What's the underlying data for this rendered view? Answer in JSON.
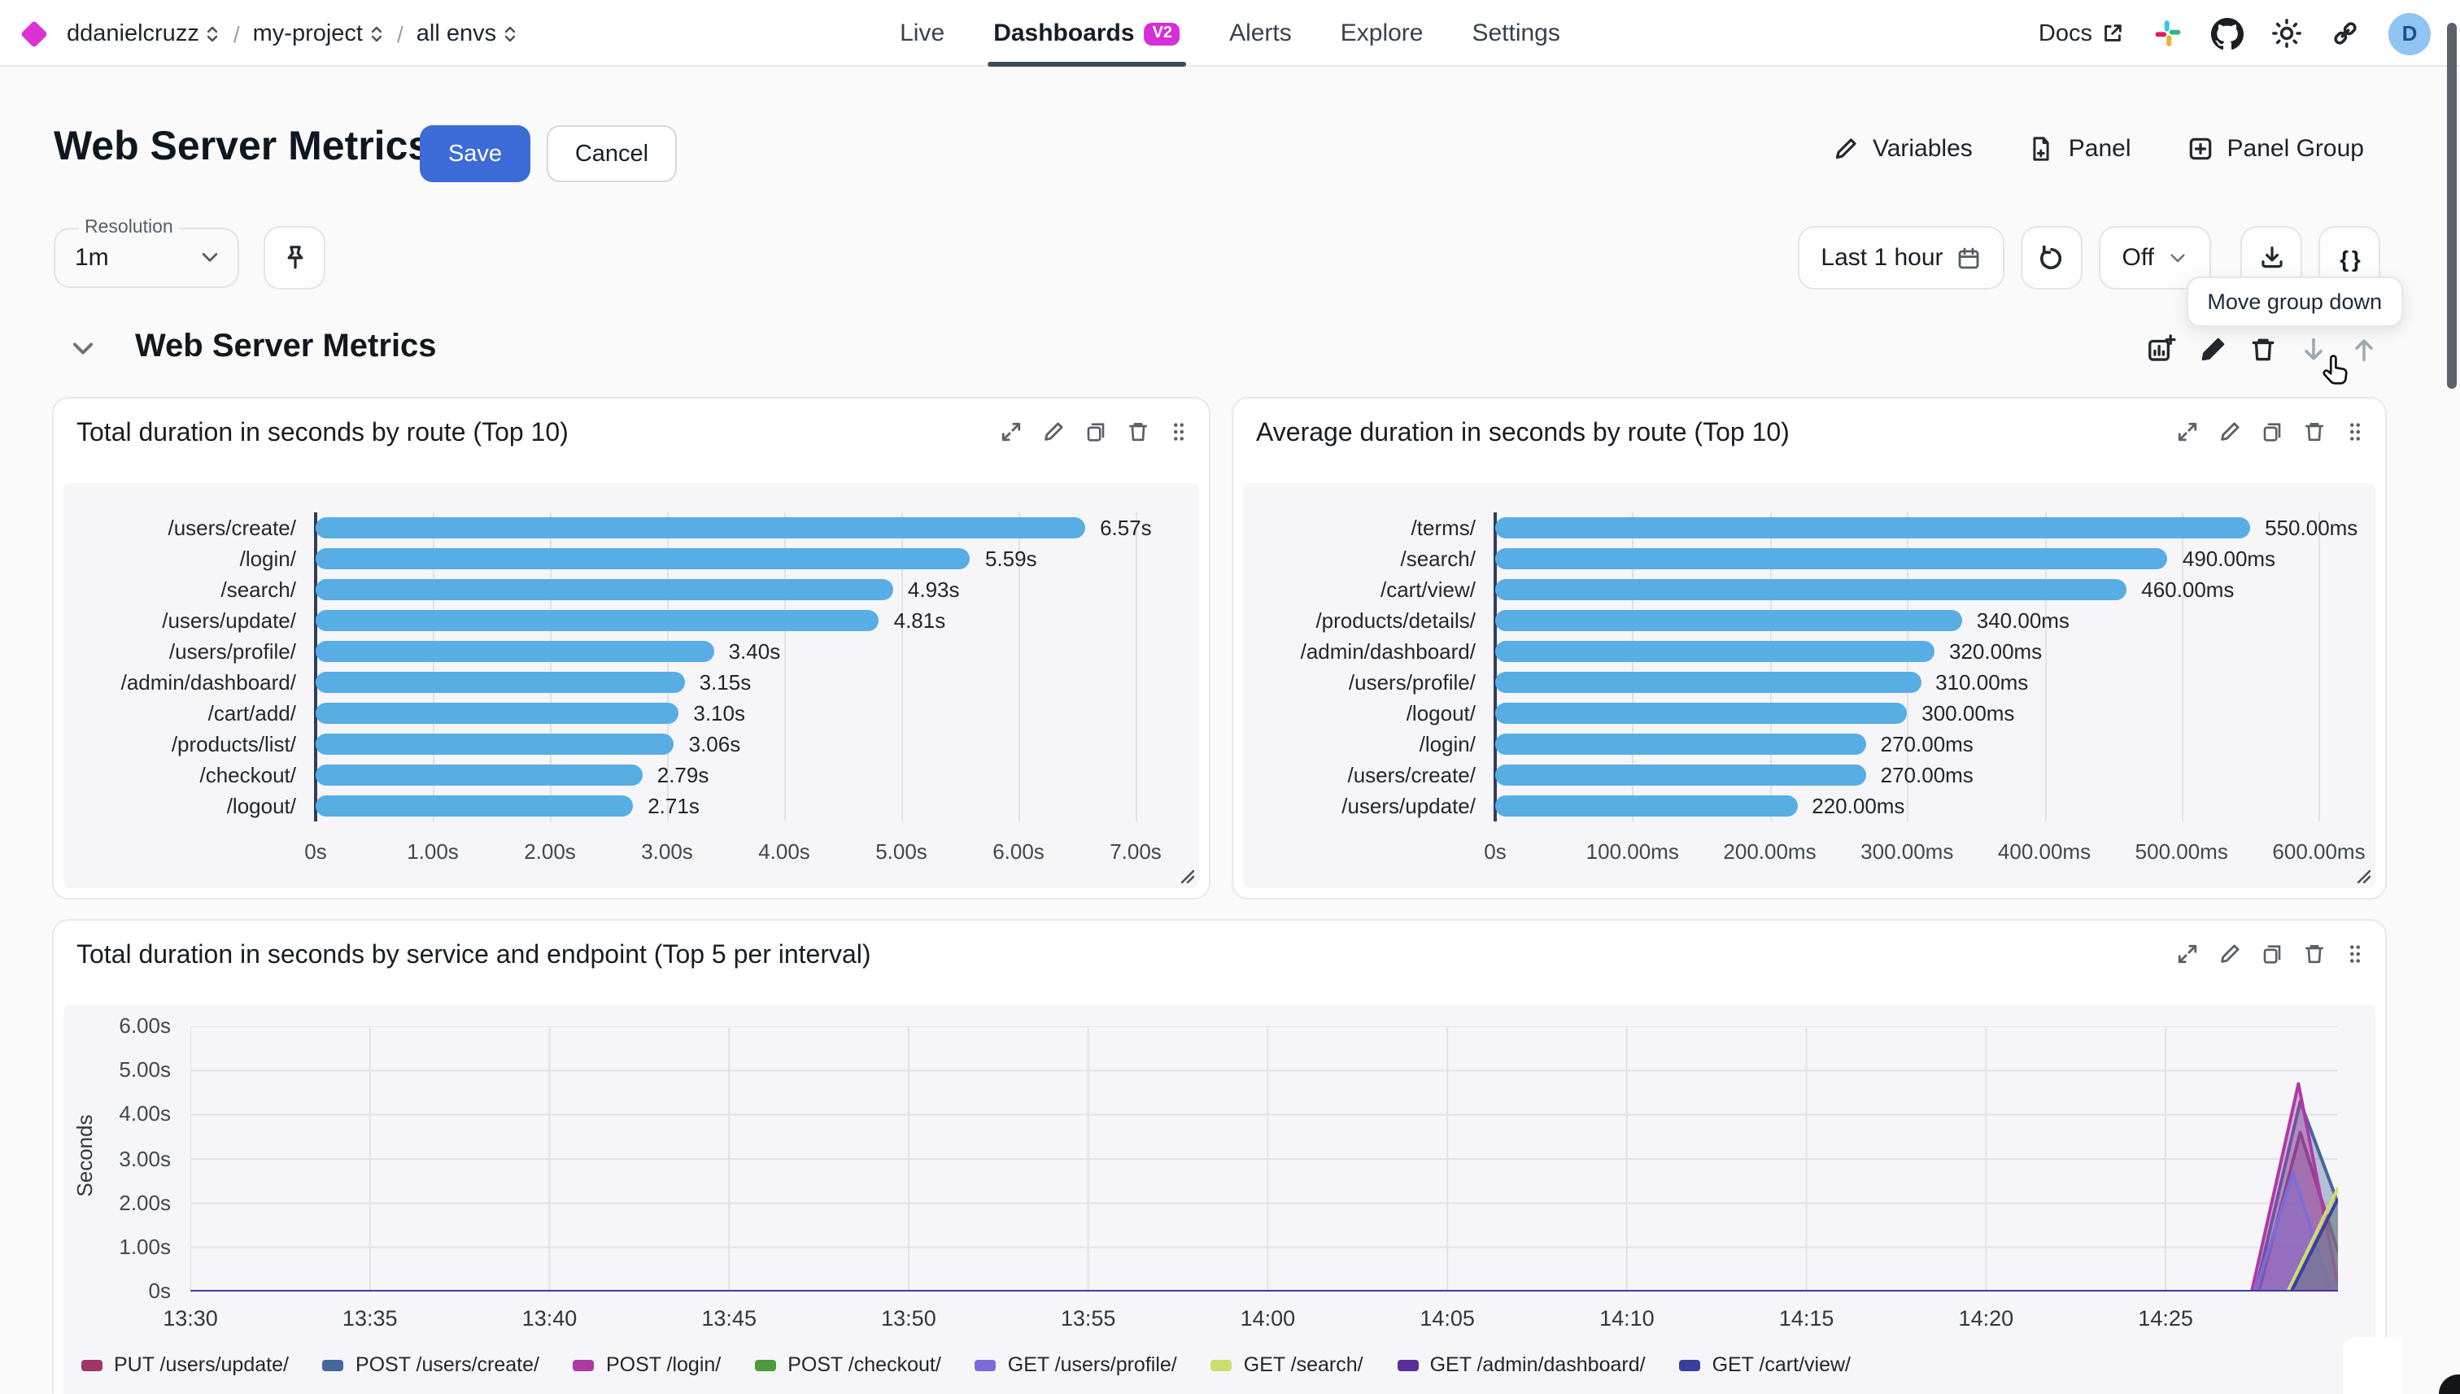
{
  "colors": {
    "accent_blue": "#3d6bd7",
    "brand_magenta": "#d52fd5",
    "avatar_bg": "#8fc4f3"
  },
  "topnav": {
    "breadcrumb": [
      {
        "label": "ddanielcruzz"
      },
      {
        "label": "my-project"
      },
      {
        "label": "all envs"
      }
    ],
    "separator": "/",
    "tabs": [
      {
        "label": "Live",
        "active": false
      },
      {
        "label": "Dashboards",
        "active": true,
        "badge": "V2"
      },
      {
        "label": "Alerts",
        "active": false
      },
      {
        "label": "Explore",
        "active": false
      },
      {
        "label": "Settings",
        "active": false
      }
    ],
    "docs_label": "Docs",
    "avatar_initial": "D"
  },
  "toolbar": {
    "title": "Web Server Metrics",
    "save_label": "Save",
    "cancel_label": "Cancel",
    "variables_label": "Variables",
    "panel_label": "Panel",
    "panel_group_label": "Panel Group"
  },
  "controls": {
    "resolution_label": "Resolution",
    "resolution_value": "1m",
    "time_range": "Last 1 hour",
    "auto_refresh": "Off",
    "code_button": "{ }"
  },
  "tooltip": "Move group down",
  "group": {
    "title": "Web Server Metrics"
  },
  "chart_data": [
    {
      "type": "bar",
      "orientation": "horizontal",
      "title": "Total duration in seconds by route (Top 10)",
      "categories": [
        "/users/create/",
        "/login/",
        "/search/",
        "/users/update/",
        "/users/profile/",
        "/admin/dashboard/",
        "/cart/add/",
        "/products/list/",
        "/checkout/",
        "/logout/"
      ],
      "values": [
        6.57,
        5.59,
        4.93,
        4.81,
        3.4,
        3.15,
        3.1,
        3.06,
        2.79,
        2.71
      ],
      "value_labels": [
        "6.57s",
        "5.59s",
        "4.93s",
        "4.81s",
        "3.40s",
        "3.15s",
        "3.10s",
        "3.06s",
        "2.79s",
        "2.71s"
      ],
      "xticks": [
        {
          "v": 0,
          "label": "0s"
        },
        {
          "v": 1,
          "label": "1.00s"
        },
        {
          "v": 2,
          "label": "2.00s"
        },
        {
          "v": 3,
          "label": "3.00s"
        },
        {
          "v": 4,
          "label": "4.00s"
        },
        {
          "v": 5,
          "label": "5.00s"
        },
        {
          "v": 6,
          "label": "6.00s"
        },
        {
          "v": 7,
          "label": "7.00s"
        }
      ],
      "xmax": 7.5,
      "bar_color": "#57ade4",
      "grid": true
    },
    {
      "type": "bar",
      "orientation": "horizontal",
      "title": "Average duration in seconds by route (Top 10)",
      "categories": [
        "/terms/",
        "/search/",
        "/cart/view/",
        "/products/details/",
        "/admin/dashboard/",
        "/users/profile/",
        "/logout/",
        "/login/",
        "/users/create/",
        "/users/update/"
      ],
      "values": [
        550,
        490,
        460,
        340,
        320,
        310,
        300,
        270,
        270,
        220
      ],
      "value_labels": [
        "550.00ms",
        "490.00ms",
        "460.00ms",
        "340.00ms",
        "320.00ms",
        "310.00ms",
        "300.00ms",
        "270.00ms",
        "270.00ms",
        "220.00ms"
      ],
      "xticks": [
        {
          "v": 0,
          "label": "0s"
        },
        {
          "v": 100,
          "label": "100.00ms"
        },
        {
          "v": 200,
          "label": "200.00ms"
        },
        {
          "v": 300,
          "label": "300.00ms"
        },
        {
          "v": 400,
          "label": "400.00ms"
        },
        {
          "v": 500,
          "label": "500.00ms"
        },
        {
          "v": 600,
          "label": "600.00ms"
        }
      ],
      "xmax": 640,
      "bar_color": "#57ade4",
      "grid": true
    },
    {
      "type": "area",
      "title": "Total duration in seconds by service and endpoint (Top 5 per interval)",
      "ylabel": "Seconds",
      "ylim": [
        0,
        6.0
      ],
      "xlim": [
        0,
        59.8
      ],
      "grid": true,
      "legend_position": "bottom",
      "yticks": [
        {
          "v": 0,
          "label": "0s"
        },
        {
          "v": 1,
          "label": "1.00s"
        },
        {
          "v": 2,
          "label": "2.00s"
        },
        {
          "v": 3,
          "label": "3.00s"
        },
        {
          "v": 4,
          "label": "4.00s"
        },
        {
          "v": 5,
          "label": "5.00s"
        },
        {
          "v": 6,
          "label": "6.00s"
        }
      ],
      "xticks": [
        {
          "v": 0,
          "label": "13:30"
        },
        {
          "v": 5,
          "label": "13:35"
        },
        {
          "v": 10,
          "label": "13:40"
        },
        {
          "v": 15,
          "label": "13:45"
        },
        {
          "v": 20,
          "label": "13:50"
        },
        {
          "v": 25,
          "label": "13:55"
        },
        {
          "v": 30,
          "label": "14:00"
        },
        {
          "v": 35,
          "label": "14:05"
        },
        {
          "v": 40,
          "label": "14:10"
        },
        {
          "v": 45,
          "label": "14:15"
        },
        {
          "v": 50,
          "label": "14:20"
        },
        {
          "v": 55,
          "label": "14:25"
        }
      ],
      "series": [
        {
          "name": "PUT /users/update/",
          "color": "#a13568",
          "points": [
            [
              0,
              0
            ],
            [
              57.6,
              0
            ],
            [
              58.75,
              3.6
            ],
            [
              59.8,
              0.9
            ]
          ]
        },
        {
          "name": "POST /users/create/",
          "color": "#46679b",
          "points": [
            [
              0,
              0
            ],
            [
              57.5,
              0
            ],
            [
              58.75,
              4.3
            ],
            [
              59.8,
              2.0
            ]
          ]
        },
        {
          "name": "POST /login/",
          "color": "#ae3aa4",
          "points": [
            [
              0,
              0
            ],
            [
              57.4,
              0
            ],
            [
              58.7,
              4.7
            ],
            [
              59.8,
              0.15
            ]
          ]
        },
        {
          "name": "POST /checkout/",
          "color": "#4e9a3f",
          "points": [
            [
              0,
              0
            ],
            [
              59.8,
              0
            ]
          ]
        },
        {
          "name": "GET /users/profile/",
          "color": "#7d6bd9",
          "points": [
            [
              0,
              0
            ],
            [
              57.5,
              0
            ],
            [
              58.55,
              2.7
            ],
            [
              59.6,
              0
            ],
            [
              59.8,
              0
            ]
          ]
        },
        {
          "name": "GET /search/",
          "color": "#cbdd70",
          "points": [
            [
              0,
              0
            ],
            [
              58.4,
              0
            ],
            [
              59.8,
              2.35
            ]
          ]
        },
        {
          "name": "GET /admin/dashboard/",
          "color": "#5a2d9b",
          "points": [
            [
              0,
              0
            ],
            [
              59.8,
              0
            ]
          ]
        },
        {
          "name": "GET /cart/view/",
          "color": "#3a3f9e",
          "points": [
            [
              0,
              0
            ],
            [
              58.5,
              0
            ],
            [
              59.8,
              2.1
            ]
          ]
        }
      ]
    }
  ]
}
